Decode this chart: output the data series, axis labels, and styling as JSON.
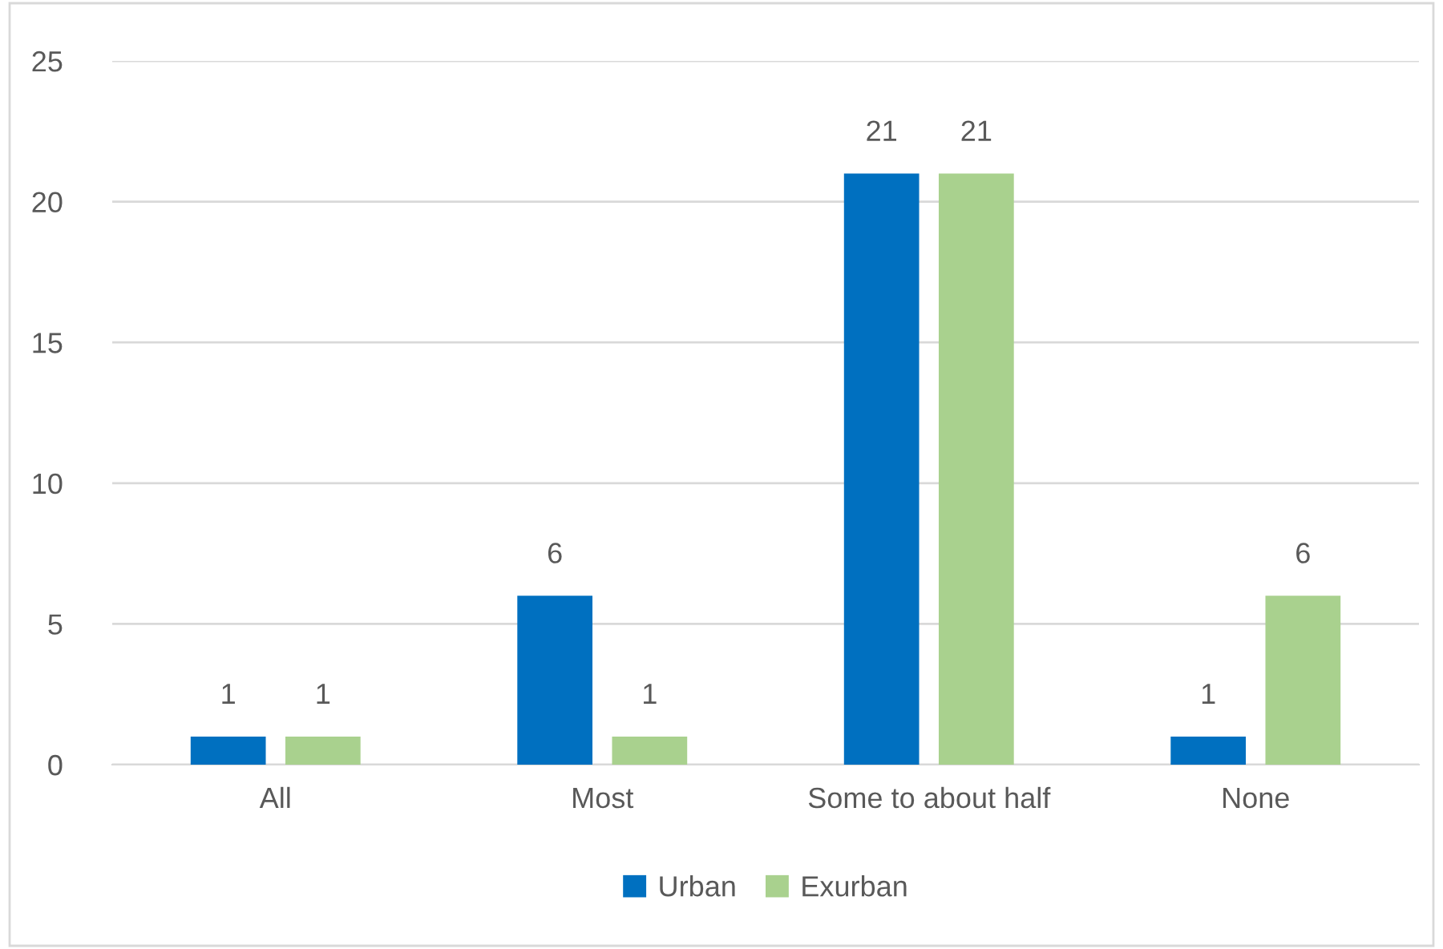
{
  "chart_data": {
    "type": "bar",
    "categories": [
      "All",
      "Most",
      "Some to about half",
      "None"
    ],
    "series": [
      {
        "name": "Urban",
        "color": "#0070c0",
        "values": [
          1,
          6,
          21,
          1
        ]
      },
      {
        "name": "Exurban",
        "color": "#a9d18e",
        "values": [
          1,
          1,
          21,
          6
        ]
      }
    ],
    "ylim": [
      0,
      25
    ],
    "yticks": [
      0,
      5,
      10,
      15,
      20,
      25
    ],
    "grid": "y",
    "legend": "bottom",
    "data_labels": true
  }
}
